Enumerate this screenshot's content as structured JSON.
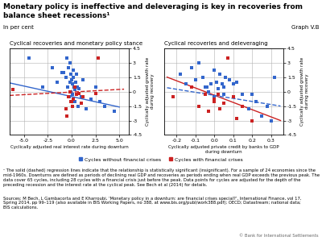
{
  "title": "Monetary policy is ineffective and deleveraging is key in recoveries from balance sheet recessions¹",
  "subtitle": "In per cent",
  "annotations": [
    "Graph V.B",
    "¹ The solid (dashed) regression lines indicate that the relationship is statistically significant (insignificant). For a sample of 24 economies since the mid-1960s. Downturns are defined as periods of declining real GDP and recoveries as periods ending when real GDP exceeds the previous peak. The data cover 65 cycles, including 28 cycles with a financial crisis just before the peak. Data points for cycles are adjusted for the depth of the preceding recession and the interest rate at the cyclical peak. See Bech et al (2014) for details.",
    "Sources: M Bech, L Gambacorta and E Kharroubi, ‘Monetary policy in a downturn: are financial crises special?’, International Finance, vol 17,\nSpring 2014, pp 99–119 (also available in BIS Working Papers, no 388, at www.bis.org/publ/work388.pdf); OECD; Datastream; national data;\nBIS calculations.",
    "© Bank for International Settlements"
  ],
  "chart_data": [
    {
      "type": "scatter",
      "title": "Cyclical recoveries and monetary policy stance",
      "xlabel": "Cyclically adjusted real interest rate during downturn",
      "ylabel": "Cyclically adjusted growth rate\nduring recovery",
      "xlim": [
        -6.5,
        6.0
      ],
      "ylim": [
        -4.5,
        4.5
      ],
      "xticks": [
        -5.0,
        -2.5,
        0.0,
        2.5,
        5.0
      ],
      "yticks": [
        -4.5,
        -3,
        -1.5,
        0,
        1.5,
        3,
        4.5
      ],
      "grid": true,
      "legend": "lower center",
      "series": [
        {
          "name": "Cycles without financial crises",
          "color": "#3366cc",
          "marker": "square",
          "x": [
            -4.5,
            -3.0,
            -2.0,
            -1.5,
            -1.0,
            -0.8,
            -0.6,
            -0.5,
            -0.4,
            -0.3,
            -0.25,
            -0.2,
            -0.15,
            -0.1,
            -0.05,
            0.0,
            0.05,
            0.1,
            0.15,
            0.2,
            0.25,
            0.3,
            0.35,
            0.4,
            0.5,
            0.6,
            0.7,
            0.8,
            1.0,
            1.2,
            1.5,
            2.0,
            2.5,
            3.0,
            3.5,
            4.5
          ],
          "values": [
            3.5,
            0.5,
            2.5,
            1.0,
            2.0,
            2.0,
            1.5,
            3.5,
            0.5,
            2.5,
            -0.5,
            1.0,
            3.0,
            0.0,
            1.8,
            1.2,
            -0.3,
            0.8,
            1.5,
            2.2,
            0.5,
            -1.0,
            0.2,
            1.0,
            1.8,
            0.5,
            -1.5,
            0.3,
            -0.5,
            1.2,
            -1.8,
            -0.8,
            0.5,
            -1.0,
            -1.5,
            -2.0
          ]
        },
        {
          "name": "Cycles with financial crises",
          "color": "#cc2222",
          "marker": "square",
          "x": [
            -6.2,
            -0.6,
            -0.5,
            -0.3,
            -0.2,
            -0.1,
            0.0,
            0.1,
            0.2,
            0.3,
            0.5,
            0.8,
            1.0,
            1.2,
            2.5,
            2.8
          ],
          "values": [
            0.2,
            -1.8,
            -2.5,
            -0.5,
            0.0,
            -1.0,
            -1.0,
            -1.5,
            -0.8,
            0.5,
            -0.3,
            -0.2,
            -1.2,
            -0.5,
            -0.2,
            3.5
          ]
        },
        {
          "type": "line",
          "color": "#3366cc",
          "line_style": "solid",
          "x": [
            -6.5,
            5.0
          ],
          "values": [
            0.9,
            -1.6
          ]
        },
        {
          "type": "line",
          "color": "#cc2222",
          "line_style": "dashed",
          "x": [
            -6.5,
            5.5
          ],
          "values": [
            -0.4,
            0.25
          ]
        }
      ]
    },
    {
      "type": "scatter",
      "title": "Cyclical recoveries and deleveraging",
      "xlabel": "Cyclically adjusted private credit by banks to GDP\nduring downturn",
      "ylabel": "Cyclically adjusted growth rate\nduring recovery",
      "xlim": [
        -0.265,
        0.365
      ],
      "ylim": [
        -4.5,
        4.5
      ],
      "xticks": [
        -0.2,
        -0.1,
        0.0,
        0.1,
        0.2,
        0.3
      ],
      "yticks": [
        -4.5,
        -3,
        -1.5,
        0,
        1.5,
        3,
        4.5
      ],
      "grid": true,
      "series": [
        {
          "name": "Cycles without financial crises",
          "color": "#3366cc",
          "marker": "square",
          "x": [
            -0.18,
            -0.15,
            -0.12,
            -0.1,
            -0.08,
            -0.06,
            -0.05,
            -0.04,
            -0.03,
            -0.02,
            0.0,
            0.0,
            0.01,
            0.02,
            0.03,
            0.04,
            0.05,
            0.05,
            0.06,
            0.08,
            0.1,
            0.12,
            0.15,
            0.18,
            0.2,
            0.22,
            0.25,
            0.28,
            0.3,
            0.32
          ],
          "values": [
            1.8,
            0.8,
            2.5,
            1.2,
            3.0,
            1.5,
            0.5,
            0.5,
            0.0,
            0.8,
            2.2,
            -0.5,
            1.0,
            0.3,
            1.8,
            0.8,
            -0.3,
            0.5,
            1.5,
            1.2,
            0.8,
            1.0,
            -0.3,
            -1.8,
            -0.3,
            -1.0,
            -2.5,
            -1.5,
            -3.0,
            1.5
          ]
        },
        {
          "name": "Cycles with financial crises",
          "color": "#cc2222",
          "marker": "square",
          "x": [
            -0.22,
            -0.12,
            -0.08,
            -0.05,
            -0.03,
            0.0,
            0.0,
            0.02,
            0.03,
            0.05,
            0.07,
            0.1,
            0.12,
            0.15,
            0.2
          ],
          "values": [
            -0.5,
            0.5,
            -1.5,
            -0.3,
            -2.0,
            -0.8,
            -1.0,
            -0.3,
            -1.8,
            -1.2,
            3.5,
            -0.5,
            -2.8,
            -1.5,
            -3.0
          ]
        },
        {
          "type": "line",
          "color": "#cc2222",
          "line_style": "solid",
          "x": [
            -0.25,
            0.35
          ],
          "values": [
            1.5,
            -3.0
          ]
        },
        {
          "type": "line",
          "color": "#3366cc",
          "line_style": "dashed",
          "x": [
            -0.25,
            0.35
          ],
          "values": [
            0.4,
            -1.5
          ]
        }
      ]
    }
  ]
}
